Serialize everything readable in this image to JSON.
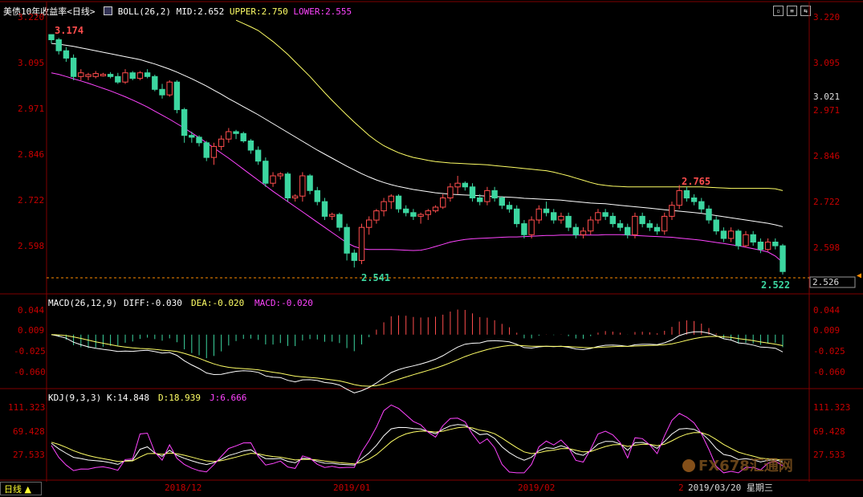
{
  "header": {
    "instrument": "美债10年收益率",
    "period_tag": "<日线>",
    "boll_name": "BOLL(26,2)",
    "mid_text": "MID:2.652",
    "upper_text": "UPPER:2.750",
    "lower_text": "LOWER:2.555"
  },
  "macd_header": {
    "name": "MACD(26,12,9)",
    "diff_text": "DIFF:-0.030",
    "dea_text": "DEA:-0.020",
    "macd_text": "MACD:-0.020"
  },
  "kdj_header": {
    "name": "KDJ(9,3,3)",
    "k_text": "K:14.848",
    "d_text": "D:18.939",
    "j_text": "J:6.666"
  },
  "price_axis": [
    "3.220",
    "3.095",
    "2.971",
    "2.846",
    "2.722",
    "2.598"
  ],
  "right_extra_label": "3.021",
  "current_price": "2.526",
  "macd_axis": [
    "0.044",
    "0.009",
    "-0.025",
    "-0.060"
  ],
  "kdj_axis": [
    "111.323",
    "69.428",
    "27.533"
  ],
  "annotations": {
    "high": "3.174",
    "low": "2.541",
    "last_low": "2.522",
    "peak": "2.765"
  },
  "date_labels": [
    "2018/12",
    "2019/01",
    "2019/02",
    "2"
  ],
  "cursor_date": "2019/03/20 星期三",
  "tab_label": "日线 ▲",
  "watermark": "FX678汇通网",
  "colors": {
    "up": "#ff4d4d",
    "down": "#3cd6a0",
    "mid": "#ffffff",
    "upper": "#ffff66",
    "lower": "#ff44ff",
    "axis": "#c80000"
  },
  "chart_data": [
    {
      "type": "candlestick",
      "title": "美债10年收益率 <日线>",
      "ylim": [
        2.5,
        3.25
      ],
      "candles": [
        [
          3.174,
          3.174,
          3.15,
          3.16
        ],
        [
          3.16,
          3.165,
          3.12,
          3.13
        ],
        [
          3.13,
          3.14,
          3.1,
          3.11
        ],
        [
          3.11,
          3.12,
          3.05,
          3.06
        ],
        [
          3.06,
          3.08,
          3.05,
          3.07
        ],
        [
          3.06,
          3.07,
          3.05,
          3.065
        ],
        [
          3.06,
          3.075,
          3.055,
          3.068
        ],
        [
          3.062,
          3.07,
          3.06,
          3.066
        ],
        [
          3.066,
          3.072,
          3.055,
          3.06
        ],
        [
          3.06,
          3.07,
          3.04,
          3.045
        ],
        [
          3.045,
          3.08,
          3.04,
          3.07
        ],
        [
          3.07,
          3.075,
          3.05,
          3.055
        ],
        [
          3.055,
          3.075,
          3.05,
          3.07
        ],
        [
          3.07,
          3.08,
          3.055,
          3.06
        ],
        [
          3.06,
          3.065,
          3.02,
          3.025
        ],
        [
          3.025,
          3.04,
          3.0,
          3.01
        ],
        [
          3.01,
          3.05,
          3.005,
          3.045
        ],
        [
          3.045,
          3.05,
          2.96,
          2.97
        ],
        [
          2.97,
          2.975,
          2.88,
          2.9
        ],
        [
          2.9,
          2.91,
          2.88,
          2.895
        ],
        [
          2.895,
          2.9,
          2.87,
          2.88
        ],
        [
          2.88,
          2.885,
          2.83,
          2.84
        ],
        [
          2.84,
          2.88,
          2.82,
          2.87
        ],
        [
          2.87,
          2.9,
          2.86,
          2.89
        ],
        [
          2.89,
          2.92,
          2.88,
          2.91
        ],
        [
          2.91,
          2.915,
          2.89,
          2.905
        ],
        [
          2.905,
          2.91,
          2.88,
          2.885
        ],
        [
          2.885,
          2.89,
          2.85,
          2.86
        ],
        [
          2.86,
          2.87,
          2.82,
          2.83
        ],
        [
          2.83,
          2.84,
          2.76,
          2.77
        ],
        [
          2.77,
          2.8,
          2.76,
          2.79
        ],
        [
          2.79,
          2.8,
          2.78,
          2.795
        ],
        [
          2.795,
          2.8,
          2.72,
          2.73
        ],
        [
          2.73,
          2.74,
          2.72,
          2.735
        ],
        [
          2.735,
          2.8,
          2.72,
          2.79
        ],
        [
          2.79,
          2.795,
          2.74,
          2.75
        ],
        [
          2.75,
          2.76,
          2.71,
          2.72
        ],
        [
          2.72,
          2.73,
          2.67,
          2.68
        ],
        [
          2.68,
          2.69,
          2.67,
          2.685
        ],
        [
          2.685,
          2.69,
          2.64,
          2.65
        ],
        [
          2.65,
          2.66,
          2.56,
          2.58
        ],
        [
          2.58,
          2.59,
          2.541,
          2.56
        ],
        [
          2.56,
          2.66,
          2.55,
          2.65
        ],
        [
          2.65,
          2.68,
          2.63,
          2.67
        ],
        [
          2.67,
          2.7,
          2.66,
          2.695
        ],
        [
          2.695,
          2.73,
          2.68,
          2.72
        ],
        [
          2.72,
          2.74,
          2.7,
          2.735
        ],
        [
          2.735,
          2.74,
          2.69,
          2.7
        ],
        [
          2.7,
          2.71,
          2.68,
          2.69
        ],
        [
          2.69,
          2.7,
          2.67,
          2.68
        ],
        [
          2.68,
          2.69,
          2.66,
          2.685
        ],
        [
          2.685,
          2.7,
          2.67,
          2.695
        ],
        [
          2.695,
          2.71,
          2.69,
          2.705
        ],
        [
          2.705,
          2.74,
          2.7,
          2.73
        ],
        [
          2.73,
          2.77,
          2.72,
          2.76
        ],
        [
          2.76,
          2.79,
          2.74,
          2.77
        ],
        [
          2.77,
          2.775,
          2.75,
          2.76
        ],
        [
          2.76,
          2.77,
          2.72,
          2.73
        ],
        [
          2.73,
          2.74,
          2.71,
          2.72
        ],
        [
          2.72,
          2.76,
          2.71,
          2.75
        ],
        [
          2.75,
          2.76,
          2.72,
          2.73
        ],
        [
          2.73,
          2.735,
          2.7,
          2.71
        ],
        [
          2.71,
          2.72,
          2.69,
          2.7
        ],
        [
          2.7,
          2.71,
          2.65,
          2.66
        ],
        [
          2.66,
          2.67,
          2.62,
          2.63
        ],
        [
          2.63,
          2.68,
          2.62,
          2.67
        ],
        [
          2.67,
          2.71,
          2.66,
          2.7
        ],
        [
          2.7,
          2.72,
          2.68,
          2.69
        ],
        [
          2.69,
          2.7,
          2.66,
          2.67
        ],
        [
          2.67,
          2.69,
          2.66,
          2.68
        ],
        [
          2.68,
          2.69,
          2.64,
          2.65
        ],
        [
          2.65,
          2.66,
          2.62,
          2.63
        ],
        [
          2.63,
          2.65,
          2.62,
          2.64
        ],
        [
          2.64,
          2.68,
          2.63,
          2.67
        ],
        [
          2.67,
          2.7,
          2.66,
          2.69
        ],
        [
          2.69,
          2.7,
          2.67,
          2.68
        ],
        [
          2.68,
          2.69,
          2.65,
          2.66
        ],
        [
          2.66,
          2.67,
          2.64,
          2.65
        ],
        [
          2.65,
          2.66,
          2.62,
          2.63
        ],
        [
          2.63,
          2.69,
          2.62,
          2.68
        ],
        [
          2.68,
          2.69,
          2.65,
          2.66
        ],
        [
          2.66,
          2.67,
          2.64,
          2.65
        ],
        [
          2.65,
          2.66,
          2.63,
          2.64
        ],
        [
          2.64,
          2.69,
          2.63,
          2.68
        ],
        [
          2.68,
          2.72,
          2.67,
          2.71
        ],
        [
          2.71,
          2.765,
          2.7,
          2.75
        ],
        [
          2.75,
          2.76,
          2.72,
          2.73
        ],
        [
          2.73,
          2.74,
          2.71,
          2.72
        ],
        [
          2.72,
          2.73,
          2.69,
          2.7
        ],
        [
          2.7,
          2.71,
          2.66,
          2.67
        ],
        [
          2.67,
          2.68,
          2.63,
          2.64
        ],
        [
          2.64,
          2.65,
          2.61,
          2.62
        ],
        [
          2.62,
          2.65,
          2.61,
          2.64
        ],
        [
          2.64,
          2.645,
          2.59,
          2.6
        ],
        [
          2.6,
          2.64,
          2.595,
          2.63
        ],
        [
          2.63,
          2.64,
          2.6,
          2.61
        ],
        [
          2.61,
          2.62,
          2.58,
          2.59
        ],
        [
          2.59,
          2.62,
          2.585,
          2.61
        ],
        [
          2.61,
          2.62,
          2.59,
          2.6
        ],
        [
          2.6,
          2.605,
          2.522,
          2.53
        ]
      ],
      "mid": [
        3.15,
        3.148,
        3.145,
        3.142,
        3.138,
        3.134,
        3.13,
        3.126,
        3.122,
        3.118,
        3.114,
        3.11,
        3.106,
        3.1,
        3.094,
        3.087,
        3.08,
        3.072,
        3.063,
        3.054,
        3.044,
        3.034,
        3.023,
        3.012,
        3.0,
        2.989,
        2.978,
        2.967,
        2.956,
        2.944,
        2.932,
        2.92,
        2.908,
        2.896,
        2.884,
        2.872,
        2.86,
        2.849,
        2.838,
        2.827,
        2.816,
        2.806,
        2.796,
        2.787,
        2.779,
        2.772,
        2.766,
        2.761,
        2.757,
        2.753,
        2.75,
        2.747,
        2.744,
        2.742,
        2.74,
        2.739,
        2.738,
        2.737,
        2.736,
        2.735,
        2.734,
        2.733,
        2.732,
        2.731,
        2.729,
        2.728,
        2.727,
        2.726,
        2.725,
        2.724,
        2.722,
        2.72,
        2.718,
        2.716,
        2.715,
        2.714,
        2.712,
        2.71,
        2.708,
        2.706,
        2.704,
        2.702,
        2.7,
        2.698,
        2.696,
        2.694,
        2.692,
        2.69,
        2.688,
        2.685,
        2.682,
        2.679,
        2.676,
        2.673,
        2.67,
        2.667,
        2.664,
        2.661,
        2.657,
        2.652
      ],
      "upper": [
        null,
        null,
        null,
        null,
        null,
        null,
        null,
        null,
        null,
        null,
        null,
        null,
        null,
        null,
        null,
        null,
        null,
        null,
        null,
        null,
        null,
        null,
        null,
        null,
        null,
        3.213,
        3.204,
        3.195,
        3.185,
        3.17,
        3.155,
        3.138,
        3.12,
        3.1,
        3.08,
        3.06,
        3.038,
        3.016,
        2.995,
        2.975,
        2.955,
        2.936,
        2.918,
        2.9,
        2.885,
        2.872,
        2.862,
        2.853,
        2.846,
        2.84,
        2.836,
        2.832,
        2.829,
        2.827,
        2.825,
        2.824,
        2.823,
        2.822,
        2.821,
        2.82,
        2.818,
        2.816,
        2.814,
        2.812,
        2.81,
        2.808,
        2.806,
        2.804,
        2.8,
        2.795,
        2.79,
        2.784,
        2.778,
        2.772,
        2.767,
        2.764,
        2.762,
        2.761,
        2.76,
        2.76,
        2.76,
        2.76,
        2.76,
        2.76,
        2.76,
        2.76,
        2.76,
        2.76,
        2.76,
        2.759,
        2.758,
        2.757,
        2.756,
        2.756,
        2.756,
        2.756,
        2.756,
        2.756,
        2.755,
        2.75
      ],
      "lower": [
        3.07,
        3.066,
        3.06,
        3.054,
        3.048,
        3.042,
        3.035,
        3.028,
        3.021,
        3.013,
        3.005,
        2.996,
        2.987,
        2.977,
        2.966,
        2.955,
        2.944,
        2.932,
        2.92,
        2.907,
        2.894,
        2.88,
        2.866,
        2.852,
        2.838,
        2.823,
        2.808,
        2.793,
        2.778,
        2.763,
        2.748,
        2.734,
        2.72,
        2.706,
        2.692,
        2.678,
        2.664,
        2.65,
        2.636,
        2.622,
        2.608,
        2.598,
        2.592,
        2.59,
        2.59,
        2.59,
        2.59,
        2.589,
        2.588,
        2.587,
        2.588,
        2.592,
        2.598,
        2.604,
        2.61,
        2.614,
        2.617,
        2.619,
        2.62,
        2.621,
        2.622,
        2.623,
        2.624,
        2.624,
        2.625,
        2.626,
        2.627,
        2.628,
        2.628,
        2.629,
        2.629,
        2.629,
        2.629,
        2.629,
        2.629,
        2.63,
        2.63,
        2.63,
        2.629,
        2.628,
        2.627,
        2.626,
        2.625,
        2.624,
        2.623,
        2.621,
        2.619,
        2.617,
        2.615,
        2.612,
        2.609,
        2.606,
        2.603,
        2.6,
        2.596,
        2.592,
        2.588,
        2.583,
        2.572,
        2.555
      ]
    }
  ]
}
